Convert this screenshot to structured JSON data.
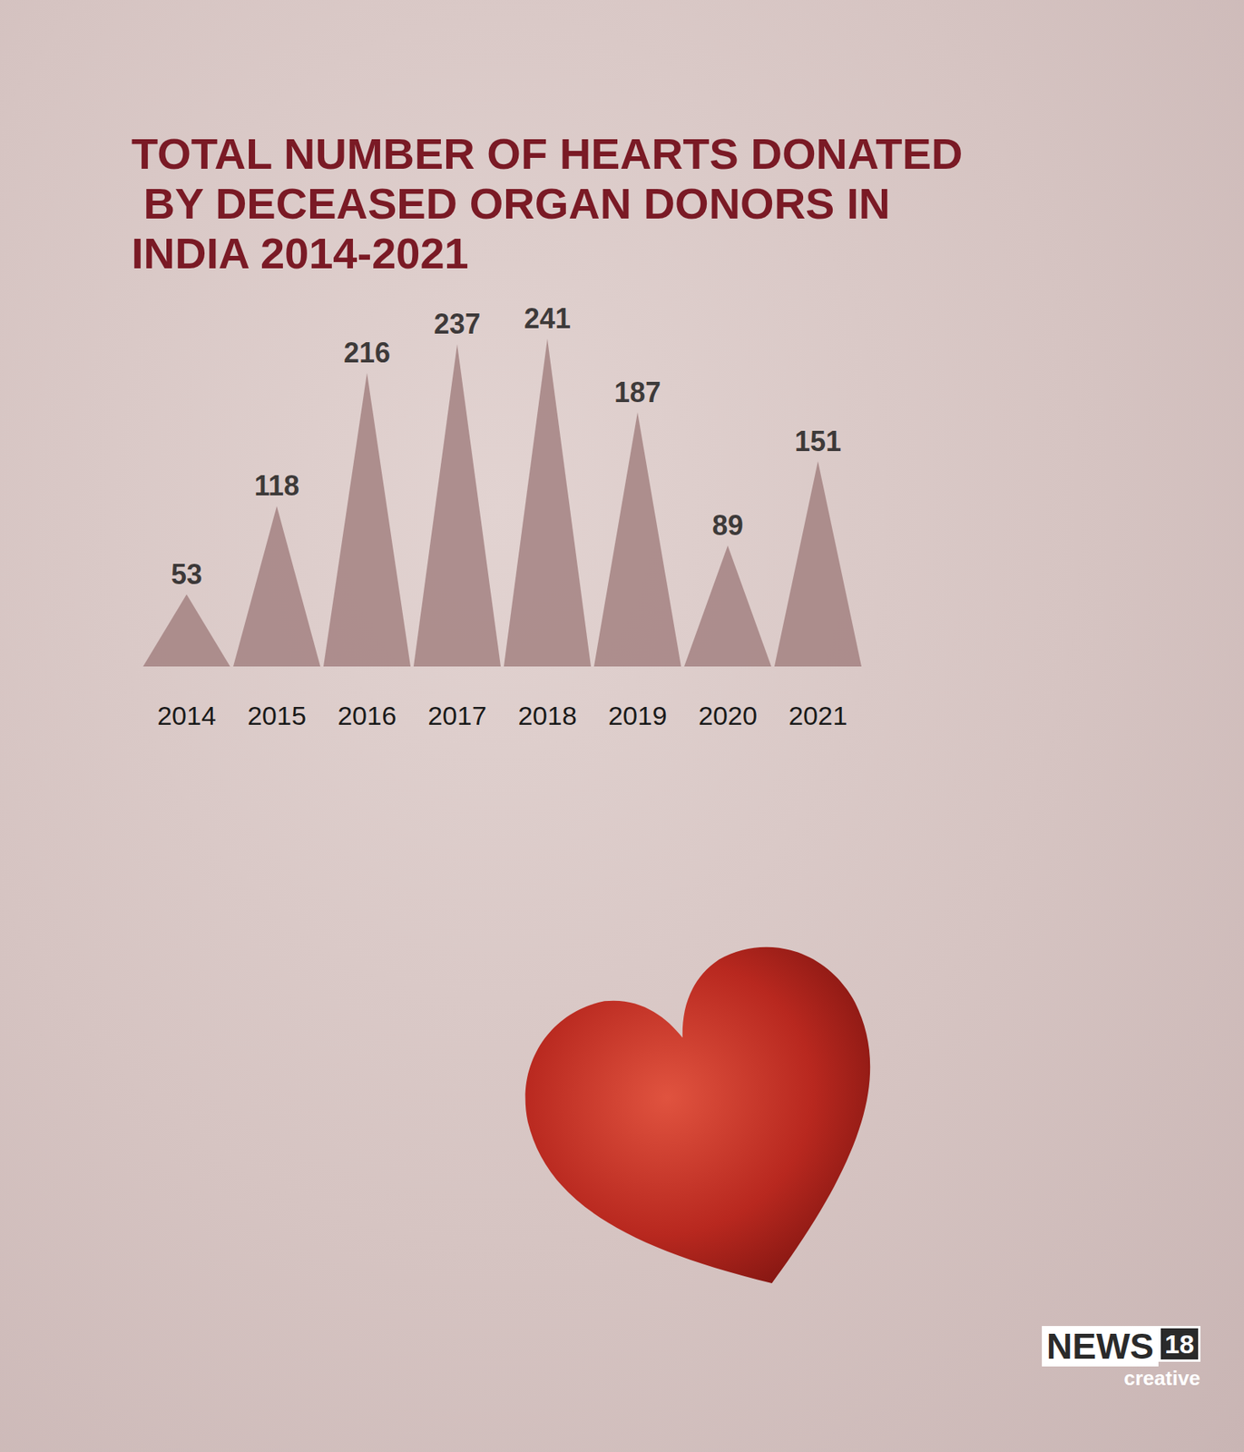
{
  "chart_data": {
    "type": "bar",
    "title": "TOTAL NUMBER OF HEARTS DONATED BY DECEASED ORGAN DONORS IN INDIA 2014-2021",
    "categories": [
      "2014",
      "2015",
      "2016",
      "2017",
      "2018",
      "2019",
      "2020",
      "2021"
    ],
    "values": [
      53,
      118,
      216,
      237,
      241,
      187,
      89,
      151
    ],
    "color": "#a07d7d",
    "marker": "triangle",
    "ylim": [
      0,
      250
    ],
    "grid": false,
    "data_labels": true,
    "tick_labels": "x"
  },
  "logo": {
    "name": "NEWS",
    "badge": "18",
    "tagline": "creative"
  }
}
